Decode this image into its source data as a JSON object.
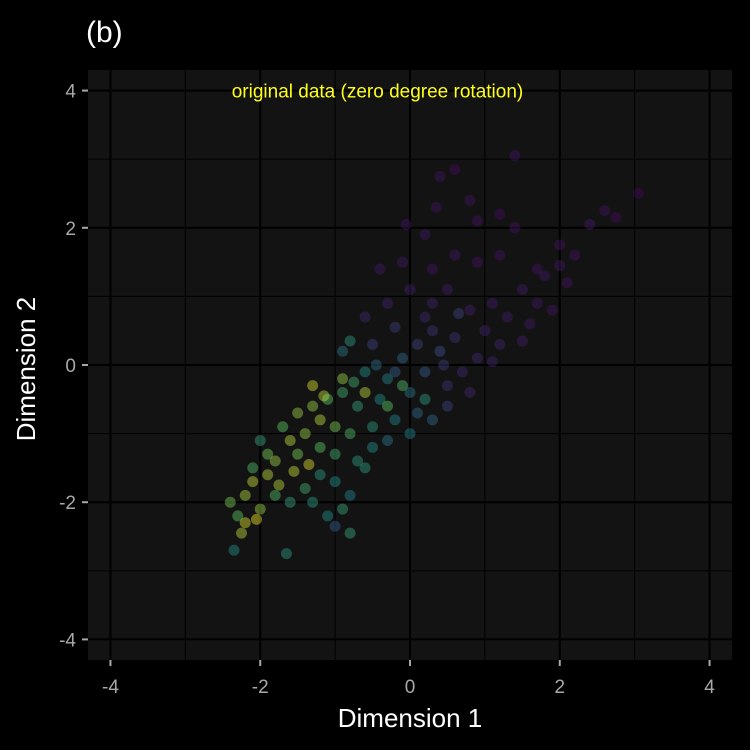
{
  "chart_data": {
    "type": "scatter",
    "title": "(b)",
    "xlabel": "Dimension 1",
    "ylabel": "Dimension 2",
    "xlim": [
      -4.3,
      4.3
    ],
    "ylim": [
      -4.3,
      4.3
    ],
    "xticks": [
      -4,
      -2,
      0,
      2,
      4
    ],
    "yticks": [
      -4,
      -2,
      0,
      2,
      4
    ],
    "xtick_labels": [
      "-4",
      "-2",
      "0",
      "2",
      "4"
    ],
    "ytick_labels": [
      "-4",
      "-2",
      "0",
      "2",
      "4"
    ],
    "grid": true,
    "annotation": {
      "text": "original data (zero degree rotation)",
      "x": 0.1,
      "y": 4.0
    },
    "colormap": [
      "#440154",
      "#3b528b",
      "#21908c",
      "#5dc963",
      "#fde725"
    ],
    "point_opacity": 0.45,
    "points": [
      {
        "x": 1.4,
        "y": 3.05,
        "c": 0.05
      },
      {
        "x": 3.05,
        "y": 2.5,
        "c": 0.02
      },
      {
        "x": 2.6,
        "y": 2.25,
        "c": 0.05
      },
      {
        "x": 2.75,
        "y": 2.15,
        "c": 0.03
      },
      {
        "x": 2.4,
        "y": 2.05,
        "c": 0.08
      },
      {
        "x": 0.6,
        "y": 2.85,
        "c": 0.04
      },
      {
        "x": 0.4,
        "y": 2.75,
        "c": 0.05
      },
      {
        "x": 0.35,
        "y": 2.3,
        "c": 0.05
      },
      {
        "x": 0.8,
        "y": 2.4,
        "c": 0.06
      },
      {
        "x": 0.9,
        "y": 2.1,
        "c": 0.05
      },
      {
        "x": 1.2,
        "y": 2.2,
        "c": 0.04
      },
      {
        "x": 1.4,
        "y": 2.0,
        "c": 0.06
      },
      {
        "x": -0.05,
        "y": 2.05,
        "c": 0.06
      },
      {
        "x": 0.2,
        "y": 1.9,
        "c": 0.07
      },
      {
        "x": -0.4,
        "y": 1.4,
        "c": 0.08
      },
      {
        "x": -0.1,
        "y": 1.5,
        "c": 0.07
      },
      {
        "x": 0.3,
        "y": 1.4,
        "c": 0.06
      },
      {
        "x": 0.6,
        "y": 1.6,
        "c": 0.07
      },
      {
        "x": 0.9,
        "y": 1.5,
        "c": 0.06
      },
      {
        "x": 1.2,
        "y": 1.6,
        "c": 0.05
      },
      {
        "x": 2.0,
        "y": 1.75,
        "c": 0.06
      },
      {
        "x": 2.2,
        "y": 1.6,
        "c": 0.05
      },
      {
        "x": 1.8,
        "y": 1.3,
        "c": 0.07
      },
      {
        "x": 1.5,
        "y": 1.1,
        "c": 0.08
      },
      {
        "x": 2.1,
        "y": 1.2,
        "c": 0.06
      },
      {
        "x": 1.7,
        "y": 0.9,
        "c": 0.07
      },
      {
        "x": 1.3,
        "y": 0.7,
        "c": 0.09
      },
      {
        "x": 1.6,
        "y": 0.6,
        "c": 0.08
      },
      {
        "x": 1.9,
        "y": 0.8,
        "c": 0.06
      },
      {
        "x": 1.0,
        "y": 0.5,
        "c": 0.1
      },
      {
        "x": 1.2,
        "y": 0.3,
        "c": 0.11
      },
      {
        "x": 0.9,
        "y": 0.1,
        "c": 0.12
      },
      {
        "x": 1.5,
        "y": 0.35,
        "c": 0.09
      },
      {
        "x": 0.7,
        "y": -0.1,
        "c": 0.13
      },
      {
        "x": 0.5,
        "y": -0.3,
        "c": 0.15
      },
      {
        "x": 1.1,
        "y": 0.05,
        "c": 0.1
      },
      {
        "x": 0.3,
        "y": 0.9,
        "c": 0.1
      },
      {
        "x": -0.3,
        "y": 0.9,
        "c": 0.1
      },
      {
        "x": -0.6,
        "y": 0.7,
        "c": 0.12
      },
      {
        "x": 0.0,
        "y": 1.1,
        "c": 0.09
      },
      {
        "x": 0.5,
        "y": 1.1,
        "c": 0.08
      },
      {
        "x": 0.3,
        "y": 0.5,
        "c": 0.15
      },
      {
        "x": -0.2,
        "y": 0.55,
        "c": 0.18
      },
      {
        "x": -0.5,
        "y": 0.3,
        "c": 0.2
      },
      {
        "x": 0.6,
        "y": 0.4,
        "c": 0.15
      },
      {
        "x": 0.2,
        "y": 0.7,
        "c": 0.12
      },
      {
        "x": 0.65,
        "y": 0.75,
        "c": 0.2
      },
      {
        "x": 0.4,
        "y": 0.2,
        "c": 0.25
      },
      {
        "x": 0.2,
        "y": -0.1,
        "c": 0.3
      },
      {
        "x": -0.1,
        "y": 0.1,
        "c": 0.35
      },
      {
        "x": 0.0,
        "y": -0.4,
        "c": 0.4
      },
      {
        "x": -0.3,
        "y": -0.2,
        "c": 0.45
      },
      {
        "x": -0.6,
        "y": -0.1,
        "c": 0.5
      },
      {
        "x": -0.8,
        "y": 0.35,
        "c": 0.55
      },
      {
        "x": -0.4,
        "y": -0.5,
        "c": 0.5
      },
      {
        "x": -0.7,
        "y": -0.6,
        "c": 0.6
      },
      {
        "x": -0.2,
        "y": -0.8,
        "c": 0.45
      },
      {
        "x": 0.1,
        "y": -0.7,
        "c": 0.35
      },
      {
        "x": -0.5,
        "y": -0.9,
        "c": 0.55
      },
      {
        "x": -0.9,
        "y": -0.4,
        "c": 0.65
      },
      {
        "x": -1.1,
        "y": -0.5,
        "c": 0.75
      },
      {
        "x": -1.3,
        "y": -0.6,
        "c": 0.85
      },
      {
        "x": -1.2,
        "y": -0.8,
        "c": 0.9
      },
      {
        "x": -1.0,
        "y": -0.9,
        "c": 0.8
      },
      {
        "x": -0.8,
        "y": -1.0,
        "c": 0.7
      },
      {
        "x": -1.4,
        "y": -1.0,
        "c": 0.85
      },
      {
        "x": -1.6,
        "y": -1.1,
        "c": 0.9
      },
      {
        "x": -1.5,
        "y": -1.3,
        "c": 0.8
      },
      {
        "x": -1.2,
        "y": -1.2,
        "c": 0.75
      },
      {
        "x": -1.0,
        "y": -1.3,
        "c": 0.65
      },
      {
        "x": -0.7,
        "y": -1.4,
        "c": 0.55
      },
      {
        "x": -1.8,
        "y": -1.4,
        "c": 0.85
      },
      {
        "x": -1.9,
        "y": -1.6,
        "c": 0.9
      },
      {
        "x": -2.1,
        "y": -1.7,
        "c": 0.92
      },
      {
        "x": -2.2,
        "y": -1.9,
        "c": 0.88
      },
      {
        "x": -2.4,
        "y": -2.0,
        "c": 0.8
      },
      {
        "x": -2.3,
        "y": -2.2,
        "c": 0.75
      },
      {
        "x": -2.2,
        "y": -2.3,
        "c": 0.95
      },
      {
        "x": -2.0,
        "y": -2.1,
        "c": 0.85
      },
      {
        "x": -1.8,
        "y": -1.9,
        "c": 0.7
      },
      {
        "x": -1.6,
        "y": -2.0,
        "c": 0.6
      },
      {
        "x": -1.4,
        "y": -1.8,
        "c": 0.65
      },
      {
        "x": -1.2,
        "y": -1.6,
        "c": 0.55
      },
      {
        "x": -1.0,
        "y": -1.7,
        "c": 0.5
      },
      {
        "x": -0.8,
        "y": -1.9,
        "c": 0.45
      },
      {
        "x": -0.9,
        "y": -2.1,
        "c": 0.6
      },
      {
        "x": -1.1,
        "y": -2.2,
        "c": 0.5
      },
      {
        "x": -1.3,
        "y": -2.0,
        "c": 0.55
      },
      {
        "x": -2.35,
        "y": -2.7,
        "c": 0.5
      },
      {
        "x": -1.65,
        "y": -2.75,
        "c": 0.55
      },
      {
        "x": -0.8,
        "y": -2.45,
        "c": 0.6
      },
      {
        "x": -1.0,
        "y": -2.35,
        "c": 0.3
      },
      {
        "x": -2.0,
        "y": -1.1,
        "c": 0.6
      },
      {
        "x": -1.7,
        "y": -0.9,
        "c": 0.75
      },
      {
        "x": -1.3,
        "y": -0.3,
        "c": 0.95
      },
      {
        "x": -1.15,
        "y": -0.45,
        "c": 0.9
      },
      {
        "x": -0.9,
        "y": -0.2,
        "c": 0.85
      },
      {
        "x": -0.6,
        "y": -0.4,
        "c": 0.9
      },
      {
        "x": -0.3,
        "y": -0.6,
        "c": 0.75
      },
      {
        "x": -0.1,
        "y": -0.3,
        "c": 0.7
      },
      {
        "x": 0.2,
        "y": -0.5,
        "c": 0.55
      },
      {
        "x": 0.0,
        "y": -1.0,
        "c": 0.45
      },
      {
        "x": 0.3,
        "y": -0.8,
        "c": 0.35
      },
      {
        "x": 0.5,
        "y": -0.6,
        "c": 0.2
      },
      {
        "x": 0.8,
        "y": -0.4,
        "c": 0.12
      },
      {
        "x": -0.5,
        "y": -1.2,
        "c": 0.5
      },
      {
        "x": -0.3,
        "y": -1.1,
        "c": 0.4
      },
      {
        "x": -0.6,
        "y": -1.5,
        "c": 0.55
      },
      {
        "x": -1.9,
        "y": -1.3,
        "c": 0.8
      },
      {
        "x": -2.1,
        "y": -1.5,
        "c": 0.7
      },
      {
        "x": -1.5,
        "y": -0.7,
        "c": 0.85
      },
      {
        "x": -1.35,
        "y": -1.45,
        "c": 0.95
      },
      {
        "x": -1.55,
        "y": -1.55,
        "c": 0.92
      },
      {
        "x": -1.75,
        "y": -1.75,
        "c": 0.9
      },
      {
        "x": -2.05,
        "y": -2.25,
        "c": 0.98
      },
      {
        "x": -2.25,
        "y": -2.45,
        "c": 0.9
      },
      {
        "x": 1.7,
        "y": 1.4,
        "c": 0.05
      },
      {
        "x": 2.0,
        "y": 1.45,
        "c": 0.07
      },
      {
        "x": 1.1,
        "y": 0.9,
        "c": 0.08
      },
      {
        "x": 0.8,
        "y": 0.8,
        "c": 0.09
      },
      {
        "x": 0.1,
        "y": 0.3,
        "c": 0.2
      },
      {
        "x": -0.2,
        "y": -0.1,
        "c": 0.3
      },
      {
        "x": 0.45,
        "y": 0.0,
        "c": 0.18
      },
      {
        "x": -0.9,
        "y": 0.2,
        "c": 0.4
      },
      {
        "x": -0.75,
        "y": -0.25,
        "c": 0.65
      },
      {
        "x": -0.45,
        "y": 0.0,
        "c": 0.38
      }
    ]
  }
}
